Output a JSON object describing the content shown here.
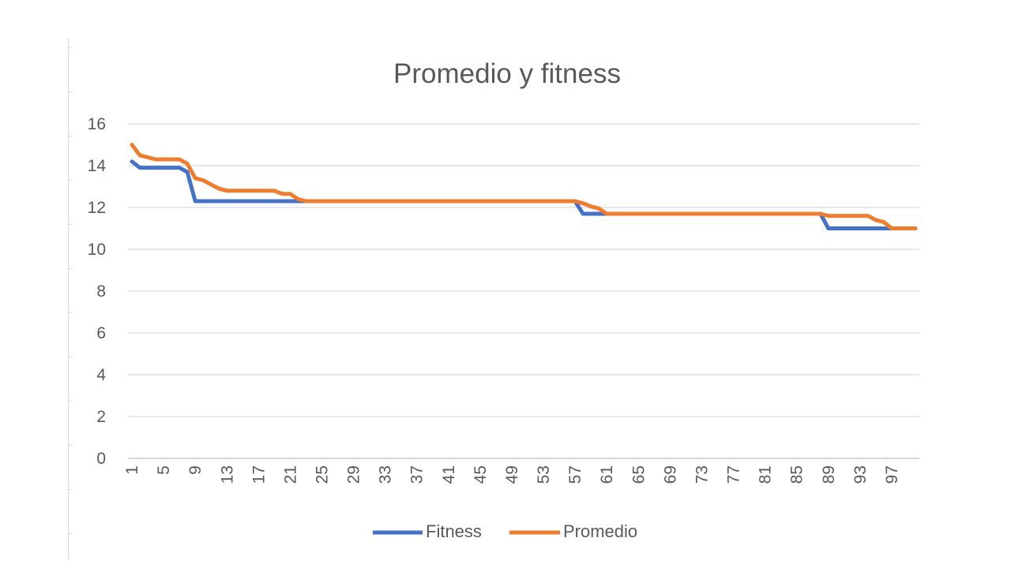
{
  "chart_data": {
    "type": "line",
    "title": "Promedio y fitness",
    "xlabel": "",
    "ylabel": "",
    "ylim": [
      0,
      16
    ],
    "yticks": [
      0,
      2,
      4,
      6,
      8,
      10,
      12,
      14,
      16
    ],
    "x_range": [
      1,
      100
    ],
    "xtick_labels": [
      "1",
      "5",
      "9",
      "13",
      "17",
      "21",
      "25",
      "29",
      "33",
      "37",
      "41",
      "45",
      "49",
      "53",
      "57",
      "61",
      "65",
      "69",
      "73",
      "77",
      "81",
      "85",
      "89",
      "93",
      "97"
    ],
    "grid": true,
    "legend_position": "bottom",
    "series": [
      {
        "name": "Fitness",
        "color": "#4472C4",
        "points": [
          [
            1,
            14.2
          ],
          [
            2,
            13.9
          ],
          [
            7,
            13.9
          ],
          [
            8,
            13.7
          ],
          [
            9,
            12.3
          ],
          [
            57,
            12.3
          ],
          [
            58,
            11.7
          ],
          [
            88,
            11.7
          ],
          [
            89,
            11.0
          ],
          [
            100,
            11.0
          ]
        ]
      },
      {
        "name": "Promedio",
        "color": "#ED7D31",
        "points": [
          [
            1,
            15.0
          ],
          [
            2,
            14.5
          ],
          [
            3,
            14.4
          ],
          [
            4,
            14.3
          ],
          [
            7,
            14.3
          ],
          [
            8,
            14.1
          ],
          [
            9,
            13.4
          ],
          [
            10,
            13.3
          ],
          [
            11,
            13.1
          ],
          [
            12,
            12.9
          ],
          [
            13,
            12.8
          ],
          [
            19,
            12.8
          ],
          [
            20,
            12.65
          ],
          [
            21,
            12.65
          ],
          [
            22,
            12.4
          ],
          [
            23,
            12.3
          ],
          [
            57,
            12.3
          ],
          [
            58,
            12.2
          ],
          [
            59,
            12.05
          ],
          [
            60,
            11.95
          ],
          [
            61,
            11.7
          ],
          [
            88,
            11.7
          ],
          [
            89,
            11.6
          ],
          [
            94,
            11.6
          ],
          [
            95,
            11.4
          ],
          [
            96,
            11.3
          ],
          [
            97,
            11.0
          ],
          [
            100,
            11.0
          ]
        ]
      }
    ]
  }
}
